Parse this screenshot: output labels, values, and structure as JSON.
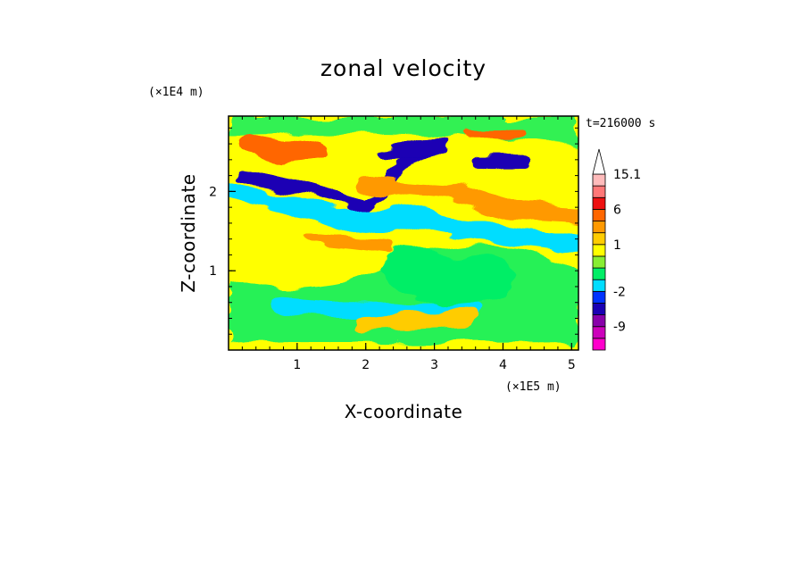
{
  "chart_data": {
    "type": "heatmap",
    "title": "zonal velocity",
    "xlabel": "X-coordinate",
    "ylabel": "Z-coordinate",
    "x_unit": "(×1E5 m)",
    "y_unit": "(×1E4 m)",
    "time_label": "t=216000 s",
    "xlim": [
      0,
      5.1
    ],
    "ylim": [
      0,
      2.95
    ],
    "x_ticks": [
      "1",
      "2",
      "3",
      "4",
      "5"
    ],
    "y_ticks": [
      "1",
      "2"
    ],
    "x_tick_values": [
      1,
      2,
      3,
      4,
      5
    ],
    "y_tick_values": [
      1,
      2
    ],
    "colorbar": {
      "label_values": [
        "15.1",
        "6",
        "1",
        "-2",
        "-9"
      ],
      "levels": [
        {
          "min": -15,
          "max": -12,
          "color": "#ff00cc"
        },
        {
          "min": -12,
          "max": -9,
          "color": "#cc00bb"
        },
        {
          "min": -9,
          "max": -6,
          "color": "#8800aa"
        },
        {
          "min": -6,
          "max": -4,
          "color": "#1a00b4"
        },
        {
          "min": -4,
          "max": -2,
          "color": "#0033ff"
        },
        {
          "min": -2,
          "max": -1,
          "color": "#00ddff"
        },
        {
          "min": -1,
          "max": 0,
          "color": "#00ee66"
        },
        {
          "min": 0,
          "max": 0.5,
          "color": "#88ee33"
        },
        {
          "min": 0.5,
          "max": 1,
          "color": "#ffff00"
        },
        {
          "min": 1,
          "max": 2,
          "color": "#ffcc00"
        },
        {
          "min": 2,
          "max": 4,
          "color": "#ff9900"
        },
        {
          "min": 4,
          "max": 6,
          "color": "#ff6600"
        },
        {
          "min": 6,
          "max": 9,
          "color": "#ee1111"
        },
        {
          "min": 9,
          "max": 12,
          "color": "#ff7777"
        },
        {
          "min": 12,
          "max": 15.1,
          "color": "#ffbbbb"
        }
      ],
      "over_color": "#ffffff"
    },
    "bands": [
      {
        "level": "-5",
        "x": [
          0.2,
          1.0,
          1.6,
          2.0,
          2.6,
          3.0
        ],
        "z": [
          2.2,
          2.05,
          1.9,
          1.8,
          2.4,
          2.55
        ],
        "width": 0.07
      },
      {
        "level": "-5",
        "x": [
          2.3,
          2.7,
          3.1
        ],
        "z": [
          2.45,
          2.5,
          2.6
        ],
        "width": 0.09
      },
      {
        "level": "-5",
        "x": [
          3.7,
          4.0,
          4.3
        ],
        "z": [
          2.38,
          2.38,
          2.38
        ],
        "width": 0.09
      },
      {
        "level": "-1.5",
        "x": [
          0.0,
          0.8,
          1.6,
          2.4,
          3.2,
          4.2,
          5.1
        ],
        "z": [
          2.0,
          1.85,
          1.65,
          1.7,
          1.55,
          1.45,
          1.35
        ],
        "width": 0.12
      },
      {
        "level": "-1.5",
        "x": [
          0.8,
          1.5,
          2.5,
          3.5
        ],
        "z": [
          0.55,
          0.5,
          0.5,
          0.5
        ],
        "width": 0.1
      },
      {
        "level": "5",
        "x": [
          0.3,
          0.8,
          1.3
        ],
        "z": [
          2.6,
          2.5,
          2.55
        ],
        "width": 0.12
      },
      {
        "level": "5",
        "x": [
          3.5,
          3.9,
          4.2
        ],
        "z": [
          2.72,
          2.72,
          2.72
        ],
        "width": 0.06
      },
      {
        "level": "3",
        "x": [
          2.0,
          2.6,
          3.2,
          4.2,
          5.1
        ],
        "z": [
          2.1,
          2.05,
          2.0,
          1.75,
          1.7
        ],
        "width": 0.1
      },
      {
        "level": "3",
        "x": [
          1.2,
          1.8,
          2.3
        ],
        "z": [
          1.4,
          1.35,
          1.3
        ],
        "width": 0.09
      },
      {
        "level": "1.5",
        "x": [
          2.0,
          2.8,
          3.5
        ],
        "z": [
          0.35,
          0.38,
          0.4
        ],
        "width": 0.1
      },
      {
        "level": "-0.5",
        "x": [
          2.6,
          3.2,
          3.8
        ],
        "z": [
          1.0,
          0.85,
          0.9
        ],
        "width": 0.3
      }
    ]
  }
}
